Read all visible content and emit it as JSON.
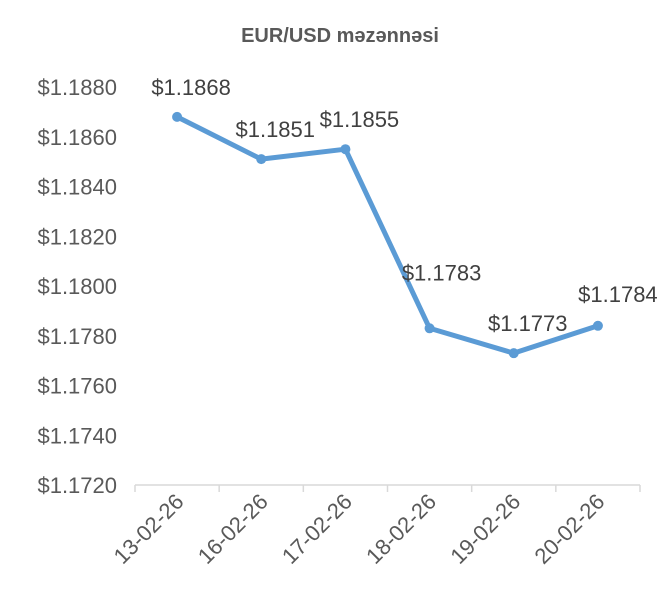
{
  "chart_data": {
    "type": "line",
    "title": "EUR/USD məzənnəsi",
    "xlabel": "",
    "ylabel": "",
    "categories": [
      "13-02-26",
      "16-02-26",
      "17-02-26",
      "18-02-26",
      "19-02-26",
      "20-02-26"
    ],
    "series": [
      {
        "values": [
          1.1868,
          1.1851,
          1.1855,
          1.1783,
          1.1773,
          1.1784
        ],
        "labels": [
          "$1.1868",
          "$1.1851",
          "$1.1855",
          "$1.1783",
          "$1.1773",
          "$1.1784"
        ],
        "color": "#5b9bd5"
      }
    ],
    "ylim": [
      1.172,
      1.188
    ],
    "yticks": [
      "$1.1720",
      "$1.1740",
      "$1.1760",
      "$1.1780",
      "$1.1800",
      "$1.1820",
      "$1.1840",
      "$1.1860",
      "$1.1880"
    ],
    "grid": false,
    "legend": "none",
    "axis_color": "#d9d9d9"
  }
}
